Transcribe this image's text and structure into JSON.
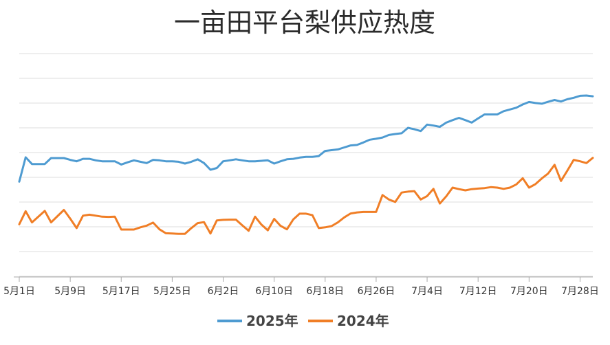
{
  "chart_data": {
    "type": "line",
    "title": "一亩田平台梨供应热度",
    "xlabel": "",
    "ylabel": "",
    "grid": true,
    "y_axis_labels_visible": false,
    "legend_position": "bottom",
    "ylim": [
      0,
      9
    ],
    "x_tick_labels": [
      "5月1日",
      "5月9日",
      "5月17日",
      "5月25日",
      "6月2日",
      "6月10日",
      "6月18日",
      "6月26日",
      "7月4日",
      "7月12日",
      "7月20日",
      "7月28日"
    ],
    "x_tick_indices": [
      0,
      8,
      16,
      24,
      32,
      40,
      48,
      56,
      64,
      72,
      80,
      88
    ],
    "series": [
      {
        "name": "2025年",
        "color": "#4e9bd1",
        "values": [
          3.84,
          4.82,
          4.55,
          4.55,
          4.55,
          4.79,
          4.79,
          4.79,
          4.72,
          4.66,
          4.76,
          4.76,
          4.7,
          4.66,
          4.66,
          4.66,
          4.53,
          4.62,
          4.7,
          4.64,
          4.59,
          4.72,
          4.7,
          4.66,
          4.66,
          4.64,
          4.57,
          4.64,
          4.74,
          4.59,
          4.32,
          4.39,
          4.66,
          4.7,
          4.74,
          4.7,
          4.66,
          4.66,
          4.68,
          4.7,
          4.57,
          4.66,
          4.74,
          4.76,
          4.81,
          4.84,
          4.84,
          4.87,
          5.08,
          5.11,
          5.14,
          5.22,
          5.3,
          5.32,
          5.42,
          5.53,
          5.57,
          5.62,
          5.72,
          5.76,
          5.79,
          6.01,
          5.95,
          5.88,
          6.14,
          6.1,
          6.05,
          6.22,
          6.32,
          6.41,
          6.32,
          6.22,
          6.39,
          6.55,
          6.55,
          6.55,
          6.68,
          6.75,
          6.82,
          6.95,
          7.05,
          7.01,
          6.98,
          7.06,
          7.13,
          7.07,
          7.16,
          7.22,
          7.3,
          7.31,
          7.28
        ]
      },
      {
        "name": "2024年",
        "color": "#f07e26",
        "values": [
          2.12,
          2.65,
          2.2,
          2.43,
          2.66,
          2.2,
          2.45,
          2.7,
          2.35,
          1.97,
          2.47,
          2.51,
          2.47,
          2.43,
          2.42,
          2.43,
          1.91,
          1.91,
          1.91,
          2.0,
          2.07,
          2.19,
          1.92,
          1.76,
          1.75,
          1.74,
          1.74,
          1.97,
          2.17,
          2.21,
          1.75,
          2.28,
          2.3,
          2.31,
          2.31,
          2.08,
          1.86,
          2.43,
          2.11,
          1.88,
          2.34,
          2.06,
          1.92,
          2.32,
          2.55,
          2.55,
          2.49,
          1.97,
          2.0,
          2.05,
          2.2,
          2.4,
          2.56,
          2.6,
          2.62,
          2.62,
          2.62,
          3.3,
          3.12,
          3.02,
          3.4,
          3.44,
          3.46,
          3.12,
          3.26,
          3.55,
          2.96,
          3.25,
          3.6,
          3.54,
          3.49,
          3.54,
          3.56,
          3.58,
          3.62,
          3.6,
          3.55,
          3.6,
          3.73,
          3.98,
          3.6,
          3.74,
          3.97,
          4.17,
          4.52,
          3.87,
          4.28,
          4.72,
          4.66,
          4.59,
          4.8
        ]
      }
    ]
  }
}
